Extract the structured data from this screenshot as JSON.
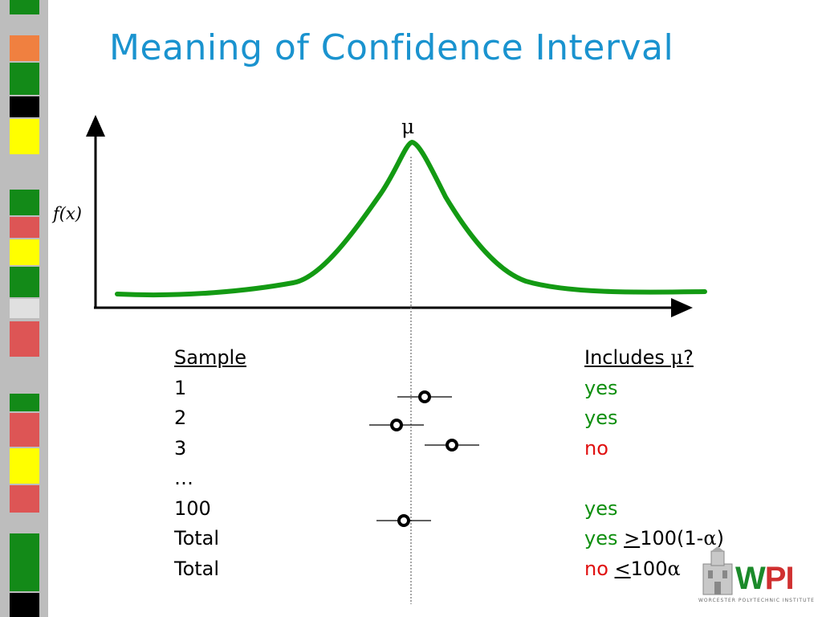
{
  "slide": {
    "title": "Meaning of Confidence Interval"
  },
  "diagram": {
    "y_axis_label": "f(x)",
    "mu_symbol": "μ"
  },
  "table": {
    "left_header": "Sample",
    "rows": [
      "1",
      "2",
      "3",
      "…",
      "100",
      "Total",
      "Total"
    ],
    "right_header_text": "Includes ",
    "right_header_mu": "μ",
    "right_header_q": "?",
    "results": {
      "r1": "yes",
      "r2": "yes",
      "r3": "no",
      "r5": "yes",
      "r6_yes": "yes",
      "r6_op": ">",
      "r6_val": "100(1-",
      "r6_alpha": "α",
      "r6_close": ")",
      "r7_no": "no",
      "r7_op": "<",
      "r7_val": "100",
      "r7_alpha": "α"
    }
  },
  "colors": {
    "title": "#1a93cf",
    "curve": "#139a13",
    "yes": "#0f8f0f",
    "no": "#e01010"
  },
  "logo": {
    "w": "W",
    "pi": "PI",
    "subtitle": "WORCESTER POLYTECHNIC INSTITUTE"
  }
}
